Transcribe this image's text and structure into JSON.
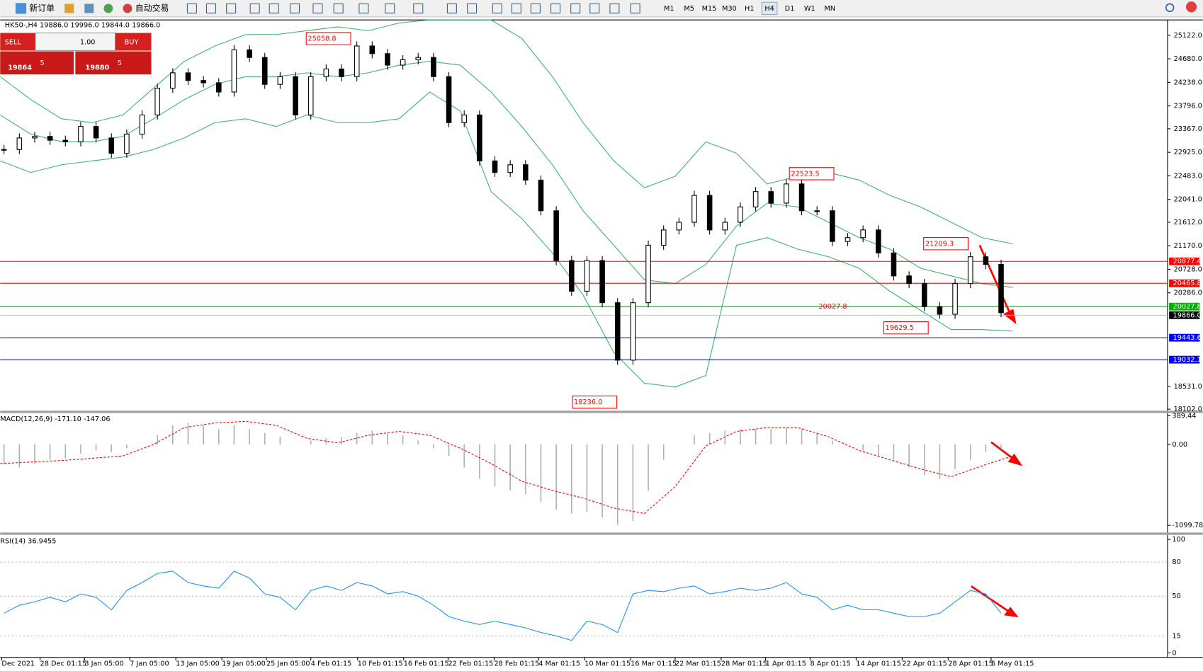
{
  "toolbar": {
    "new_order": "新订单",
    "auto_trading": "自动交易",
    "timeframes": [
      "M1",
      "M5",
      "M15",
      "M30",
      "H1",
      "H4",
      "D1",
      "W1",
      "MN"
    ]
  },
  "trade_panel": {
    "sell": "SELL",
    "buy": "BUY",
    "lot": "1.00",
    "bid_main": "19864",
    "bid_big": "5",
    "ask_main": "19880",
    "ask_big": "5"
  },
  "chart": {
    "header": "HK50-,H4  19886.0 19996.0 19844.0 19866.0",
    "ylim": [
      18059,
      25410
    ],
    "price_ticks": [
      {
        "value": 25122,
        "label": "25122.0"
      },
      {
        "value": 24680,
        "label": "24680.0"
      },
      {
        "value": 24238,
        "label": "24238.0"
      },
      {
        "value": 23796,
        "label": "23796.0"
      },
      {
        "value": 23367,
        "label": "23367.0"
      },
      {
        "value": 22925,
        "label": "22925.0"
      },
      {
        "value": 22483,
        "label": "22483.0"
      },
      {
        "value": 22041,
        "label": "22041.0"
      },
      {
        "value": 21612,
        "label": "21612.0"
      },
      {
        "value": 21170,
        "label": "21170.0"
      },
      {
        "value": 20728,
        "label": "20728.0"
      },
      {
        "value": 20286,
        "label": "20286.0"
      },
      {
        "value": 18531,
        "label": "18531.0"
      },
      {
        "value": 18102,
        "label": "18102.0"
      }
    ],
    "closes": [
      22978,
      23194,
      23223,
      23151,
      23122,
      23410,
      23194,
      22906,
      23266,
      23626,
      24129,
      24417,
      24273,
      24230,
      24057,
      24849,
      24705,
      24201,
      24345,
      23626,
      24345,
      24489,
      24345,
      24921,
      24777,
      24561,
      24662,
      24705,
      24345,
      23482,
      23626,
      22763,
      22547,
      22691,
      22403,
      21827,
      20892,
      20317,
      20892,
      20101,
      19022,
      20101,
      21180,
      21467,
      21611,
      22115,
      21467,
      21611,
      21899,
      22187,
      21971,
      22331,
      21827,
      21827,
      21251,
      21323,
      21467,
      21035,
      20604,
      20460,
      20028,
      19885,
      20460,
      20964,
      20820,
      19914
    ],
    "bollinger": {
      "color": "#3cb371",
      "upper": [
        24345,
        23914,
        23554,
        23482,
        23626,
        24129,
        24633,
        24921,
        25136,
        25136,
        25208,
        25280,
        25208,
        25352,
        25410,
        25410,
        25410,
        25064,
        24345,
        23482,
        22763,
        22259,
        22475,
        23122,
        22907,
        22331,
        22475,
        22547,
        22403,
        22115,
        21899,
        21611,
        21323,
        21208
      ],
      "middle": [
        23626,
        23266,
        23122,
        23122,
        23223,
        23554,
        23914,
        24201,
        24345,
        24345,
        24417,
        24345,
        24417,
        24561,
        24633,
        24561,
        24057,
        23410,
        22691,
        21827,
        21180,
        20532,
        20460,
        20820,
        21539,
        21970,
        21899,
        21611,
        21323,
        21107,
        20748,
        20604,
        20460,
        20388
      ],
      "lower": [
        22763,
        22547,
        22691,
        22763,
        22835,
        22979,
        23194,
        23482,
        23554,
        23410,
        23626,
        23482,
        23482,
        23554,
        24057,
        23698,
        22187,
        21683,
        21036,
        20245,
        19166,
        18590,
        18518,
        18734,
        21180,
        21323,
        21107,
        20964,
        20748,
        20316,
        19957,
        19597,
        19597,
        19568
      ]
    },
    "levels": [
      {
        "value": 20877.4,
        "color": "#ff0000"
      },
      {
        "value": 20465.8,
        "color": "#ff0000"
      },
      {
        "value": 20027.8,
        "color": "#00b000"
      },
      {
        "value": 19866,
        "label": "19866.0",
        "color": "#000000"
      },
      {
        "value": 19443.6,
        "color": "#0000ff"
      },
      {
        "value": 19032.1,
        "color": "#0000ff"
      }
    ],
    "annotations": [
      {
        "value": 25058.8
      },
      {
        "value": 22523.5
      },
      {
        "value": 21209.3
      },
      {
        "value": 20027.8
      },
      {
        "value": 19629.5
      },
      {
        "value": 18236,
        "label": "18236.0"
      }
    ],
    "time_labels": [
      "Dec 2021",
      "28 Dec 01:15",
      "3 Jan 05:00",
      "7 Jan 05:00",
      "13 Jan 05:00",
      "19 Jan 05:00",
      "25 Jan 05:00",
      "4 Feb 01:15",
      "10 Feb 01:15",
      "16 Feb 01:15",
      "22 Feb 01:15",
      "28 Feb 01:15",
      "4 Mar 01:15",
      "10 Mar 01:15",
      "16 Mar 01:15",
      "22 Mar 01:15",
      "28 Mar 01:15",
      "1 Apr 01:15",
      "8 Apr 01:15",
      "14 Apr 01:15",
      "22 Apr 01:15",
      "28 Apr 01:15",
      "5 May 01:15"
    ]
  },
  "macd": {
    "header": "MACD(12,26,9) -171.10 -147.06",
    "ylim": [
      -1198,
      427
    ],
    "ticks": [
      {
        "value": 389.44,
        "label": "389.44"
      },
      {
        "value": 0,
        "label": "0.00"
      },
      -1099.78
    ],
    "histogram": [
      -260,
      -313,
      -260,
      -208,
      -188,
      -125,
      -83,
      -104,
      -52,
      0,
      125,
      260,
      292,
      260,
      208,
      260,
      208,
      156,
      104,
      0,
      52,
      83,
      104,
      156,
      188,
      156,
      125,
      52,
      -52,
      -156,
      -313,
      -469,
      -573,
      -625,
      -677,
      -781,
      -886,
      -938,
      -917,
      -990,
      -1094,
      -1042,
      -625,
      -208,
      0,
      125,
      156,
      188,
      208,
      208,
      208,
      229,
      208,
      156,
      52,
      0,
      -83,
      -156,
      -208,
      -313,
      -417,
      -469,
      -333,
      -208,
      -104,
      -52
    ],
    "signal": [
      -260,
      -240,
      -219,
      -188,
      -156,
      0,
      229,
      292,
      313,
      260,
      83,
      21,
      125,
      177,
      125,
      -52,
      -260,
      -500,
      -625,
      -729,
      -865,
      -938,
      -573,
      -21,
      177,
      229,
      229,
      104,
      -83,
      -208,
      -333,
      -438,
      -292,
      -156
    ]
  },
  "rsi": {
    "header": "RSI(14) 36.9455",
    "ylim": [
      -4,
      104
    ],
    "ticks": [
      0,
      15,
      50,
      80,
      100
    ],
    "values": [
      35,
      42,
      45,
      49,
      45,
      52,
      49,
      38,
      55,
      62,
      70,
      72,
      62,
      59,
      57,
      72,
      66,
      52,
      49,
      38,
      55,
      59,
      55,
      62,
      59,
      52,
      54,
      50,
      42,
      32,
      28,
      25,
      28,
      25,
      22,
      18,
      15,
      11,
      28,
      25,
      18,
      52,
      55,
      54,
      57,
      59,
      52,
      54,
      57,
      55,
      57,
      62,
      52,
      49,
      38,
      42,
      38,
      38,
      35,
      32,
      32,
      35,
      45,
      55,
      52,
      35
    ]
  }
}
